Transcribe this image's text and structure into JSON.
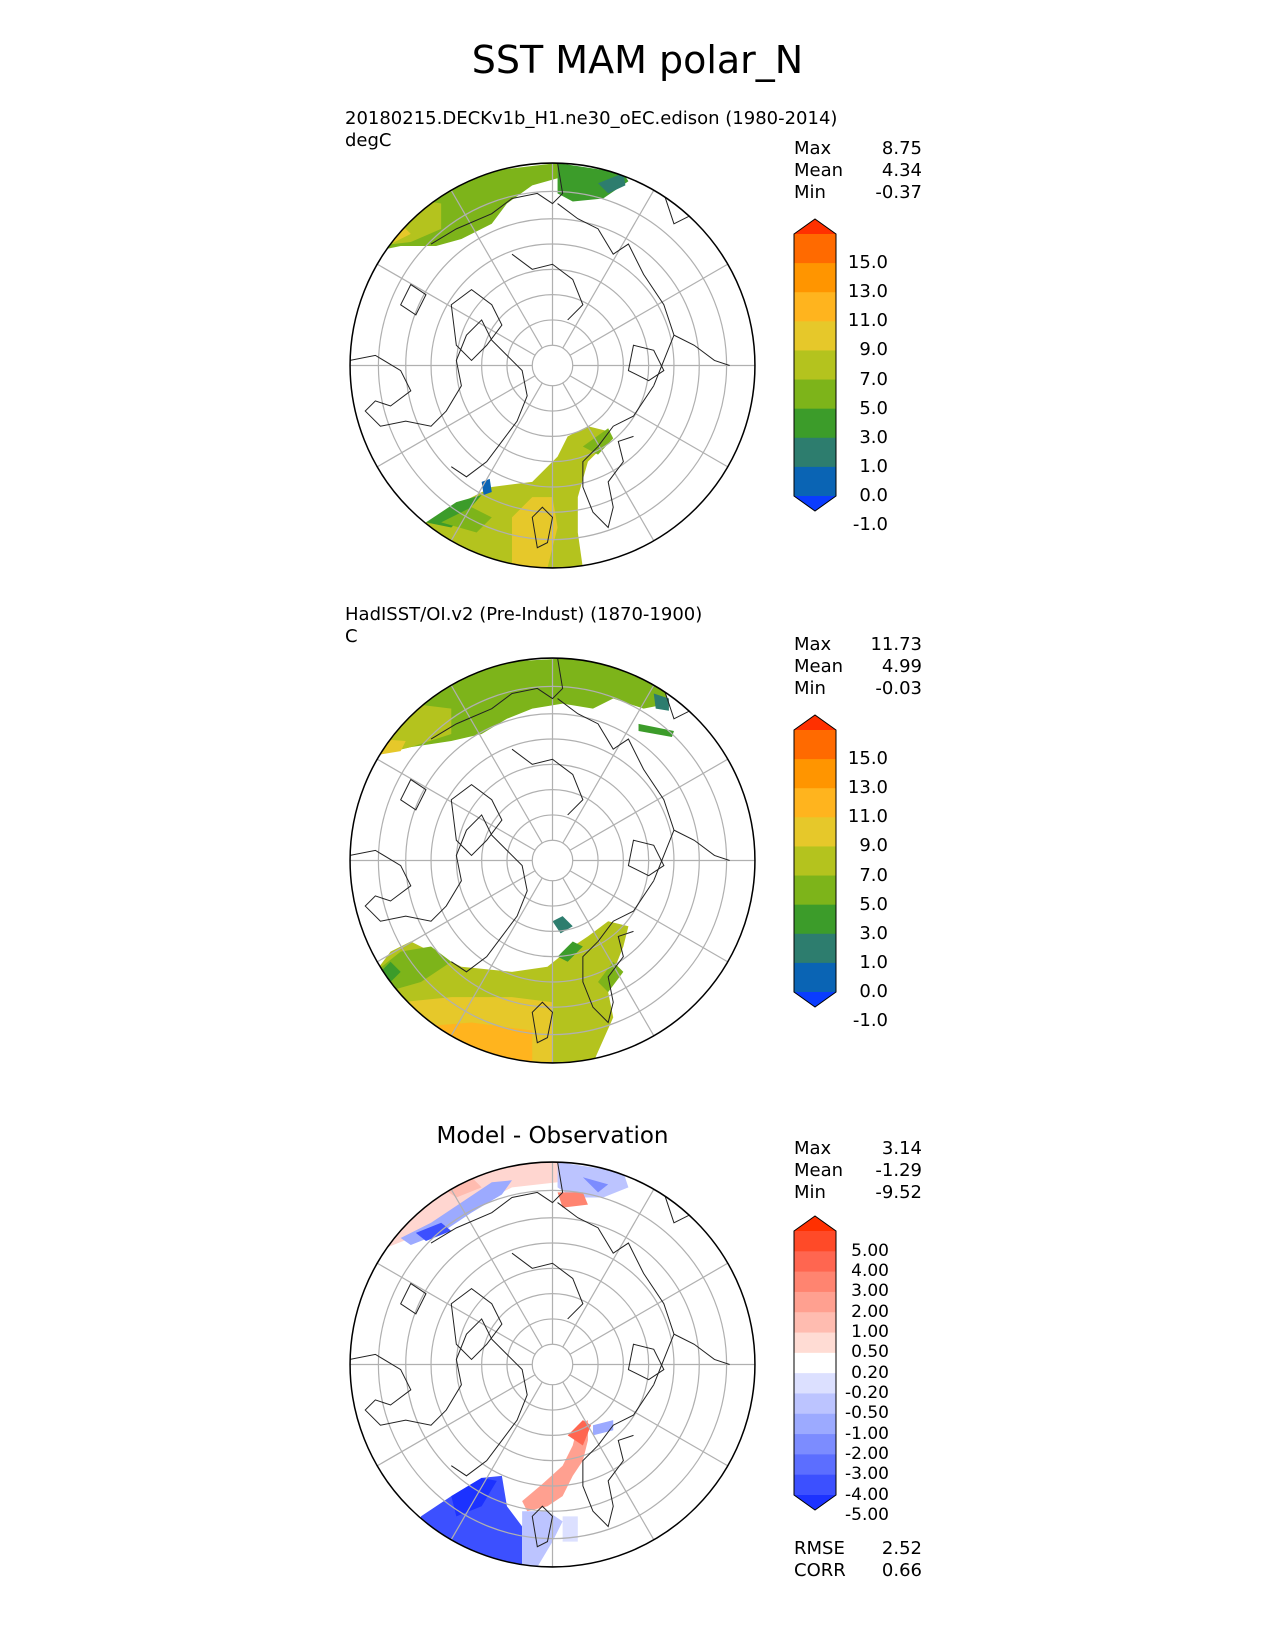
{
  "figure": {
    "title": "SST MAM polar_N"
  },
  "model_panel": {
    "title": "20180215.DECKv1b_H1.ne30_oEC.edison (1980-2014)",
    "units": "degC",
    "stats": {
      "max_label": "Max",
      "max": "8.75",
      "mean_label": "Mean",
      "mean": "4.34",
      "min_label": "Min",
      "min": "-0.37"
    }
  },
  "obs_panel": {
    "title": "HadISST/OI.v2 (Pre-Indust) (1870-1900)",
    "units": "C",
    "stats": {
      "max_label": "Max",
      "max": "11.73",
      "mean_label": "Mean",
      "mean": "4.99",
      "min_label": "Min",
      "min": "-0.03"
    }
  },
  "diff_panel": {
    "title": "Model - Observation",
    "stats": {
      "max_label": "Max",
      "max": "3.14",
      "mean_label": "Mean",
      "mean": "-1.29",
      "min_label": "Min",
      "min": "-9.52"
    },
    "metrics": {
      "rmse_label": "RMSE",
      "rmse": "2.52",
      "corr_label": "CORR",
      "corr": "0.66"
    }
  },
  "colorbar_main": {
    "labels": [
      "15.0",
      "13.0",
      "11.0",
      "9.0",
      "7.0",
      "5.0",
      "3.0",
      "1.0",
      "0.0",
      "-1.0"
    ],
    "colors": [
      "#ff3000",
      "#ff6a00",
      "#ff9500",
      "#ffb41e",
      "#e6c82a",
      "#b4c31e",
      "#7db41a",
      "#3c9c2a",
      "#2d7d6e",
      "#0a64b4",
      "#0a3cff"
    ]
  },
  "colorbar_diff": {
    "labels": [
      "5.00",
      "4.00",
      "3.00",
      "2.00",
      "1.00",
      "0.50",
      "0.20",
      "-0.20",
      "-0.50",
      "-1.00",
      "-2.00",
      "-3.00",
      "-4.00",
      "-5.00"
    ],
    "colors": [
      "#ff3000",
      "#ff4a28",
      "#ff6650",
      "#ff8470",
      "#ffa090",
      "#ffbcb0",
      "#ffdcd4",
      "#ffffff",
      "#dce0ff",
      "#bcc4ff",
      "#9caaff",
      "#7c8cff",
      "#5c6eff",
      "#3c50ff",
      "#1c32ff"
    ]
  }
}
